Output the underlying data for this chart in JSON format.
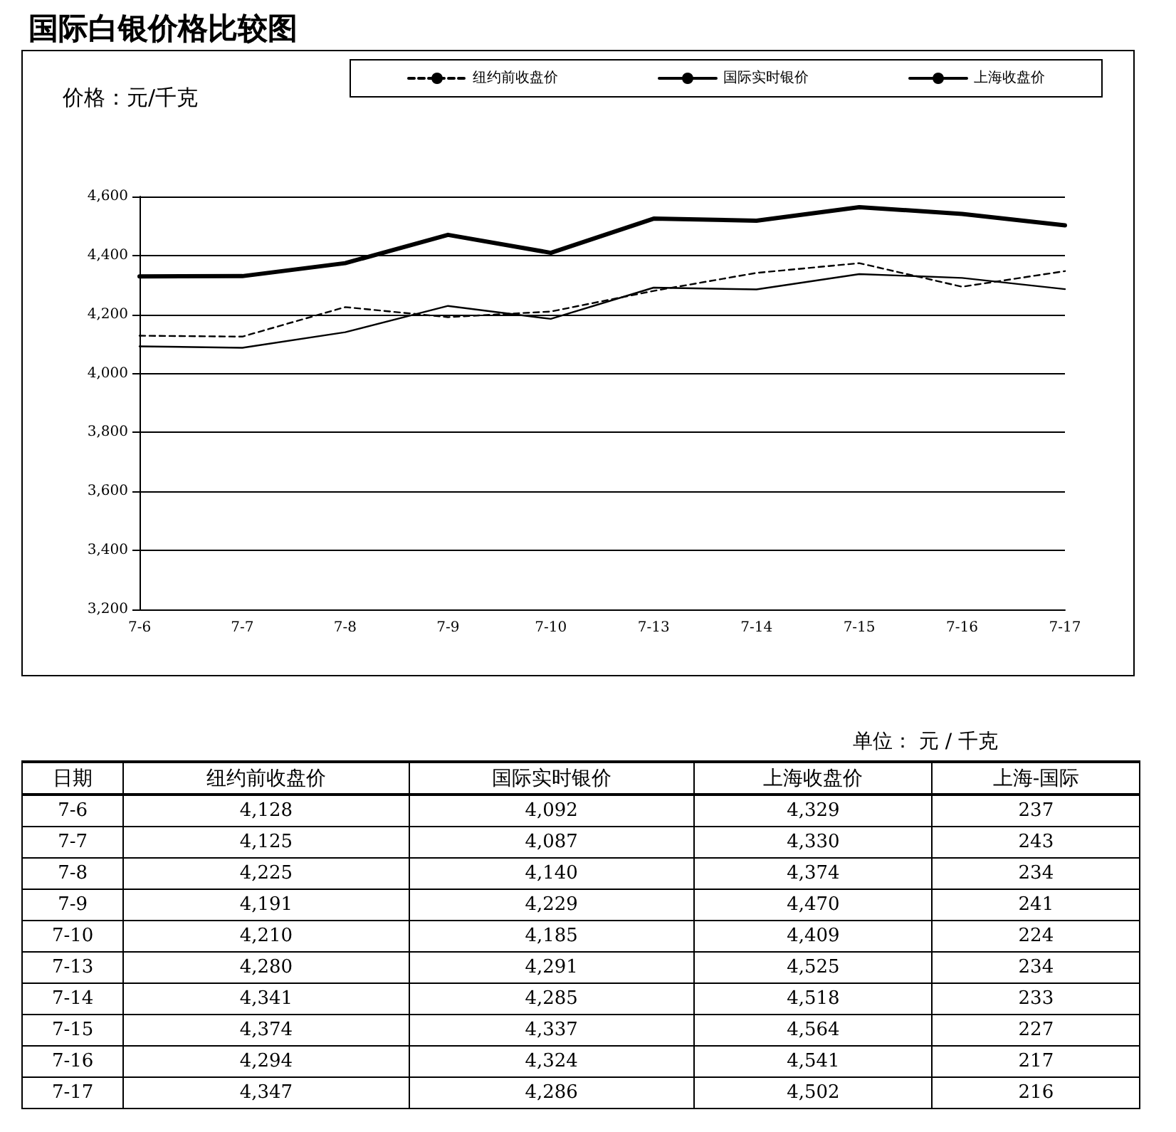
{
  "chart_data": [
    {
      "type": "line",
      "title": "国际白银价格比较图",
      "ylabel": "价格：元/千克",
      "categories": [
        "7-6",
        "7-7",
        "7-8",
        "7-9",
        "7-10",
        "7-13",
        "7-14",
        "7-15",
        "7-16",
        "7-17"
      ],
      "series": [
        {
          "name": "纽约前收盘价",
          "color": "#000000",
          "line_style": "dashed",
          "values": [
            4128,
            4125,
            4225,
            4191,
            4210,
            4280,
            4341,
            4374,
            4294,
            4347
          ]
        },
        {
          "name": "国际实时银价",
          "color": "#000000",
          "line_style": "solid",
          "values": [
            4092,
            4087,
            4140,
            4229,
            4185,
            4291,
            4285,
            4337,
            4324,
            4286
          ]
        },
        {
          "name": "上海收盘价",
          "color": "#000000",
          "line_style": "solid",
          "values": [
            4329,
            4330,
            4374,
            4470,
            4409,
            4525,
            4518,
            4564,
            4541,
            4502
          ]
        }
      ],
      "ylim": [
        3200,
        4600
      ],
      "yticks": [
        {
          "value": 3200,
          "label": "3,200"
        },
        {
          "value": 3400,
          "label": "3,400"
        },
        {
          "value": 3600,
          "label": "3,600"
        },
        {
          "value": 3800,
          "label": "3,800"
        },
        {
          "value": 4000,
          "label": "4,000"
        },
        {
          "value": 4200,
          "label": "4,200"
        },
        {
          "value": 4400,
          "label": "4,400"
        },
        {
          "value": 4600,
          "label": "4,600"
        }
      ],
      "grid": "y",
      "legend": "top",
      "marker": "none"
    },
    {
      "type": "other",
      "xlabel": "日期",
      "annotations": [
        "单位：  元 / 千克"
      ],
      "categories": [
        "7-6",
        "7-7",
        "7-8",
        "7-9",
        "7-10",
        "7-13",
        "7-14",
        "7-15",
        "7-16",
        "7-17"
      ],
      "series": [
        {
          "name": "纽约前收盘价",
          "values": [
            4128,
            4125,
            4225,
            4191,
            4210,
            4280,
            4341,
            4374,
            4294,
            4347
          ],
          "value_labels": [
            "4,128",
            "4,125",
            "4,225",
            "4,191",
            "4,210",
            "4,280",
            "4,341",
            "4,374",
            "4,294",
            "4,347"
          ]
        },
        {
          "name": "国际实时银价",
          "values": [
            4092,
            4087,
            4140,
            4229,
            4185,
            4291,
            4285,
            4337,
            4324,
            4286
          ],
          "value_labels": [
            "4,092",
            "4,087",
            "4,140",
            "4,229",
            "4,185",
            "4,291",
            "4,285",
            "4,337",
            "4,324",
            "4,286"
          ]
        },
        {
          "name": "上海收盘价",
          "values": [
            4329,
            4330,
            4374,
            4470,
            4409,
            4525,
            4518,
            4564,
            4541,
            4502
          ],
          "value_labels": [
            "4,329",
            "4,330",
            "4,374",
            "4,470",
            "4,409",
            "4,525",
            "4,518",
            "4,564",
            "4,541",
            "4,502"
          ]
        },
        {
          "name": "上海-国际",
          "values": [
            237,
            243,
            234,
            241,
            224,
            234,
            233,
            227,
            217,
            216
          ],
          "value_labels": [
            "237",
            "243",
            "234",
            "241",
            "224",
            "234",
            "233",
            "227",
            "217",
            "216"
          ]
        }
      ]
    }
  ]
}
